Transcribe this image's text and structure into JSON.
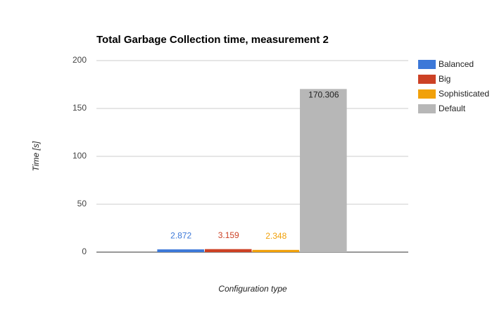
{
  "chart_data": {
    "type": "bar",
    "title": "Total Garbage Collection time, measurement 2",
    "x_label": "Configuration type",
    "y_label": "Time [s]",
    "categories": [
      null
    ],
    "series": [
      {
        "name": "Balanced",
        "color": "#3c78d8",
        "values": [
          2.872
        ]
      },
      {
        "name": "Big",
        "color": "#cc4125",
        "values": [
          3.159
        ]
      },
      {
        "name": "Sophisticated",
        "color": "#f1a10a",
        "values": [
          2.348
        ]
      },
      {
        "name": "Default",
        "color": "#b7b7b7",
        "values": [
          170.306
        ]
      }
    ],
    "ylim": [
      0,
      200
    ],
    "yticks": [
      0,
      50,
      100,
      150,
      200
    ],
    "grid": true,
    "legend": "right"
  }
}
